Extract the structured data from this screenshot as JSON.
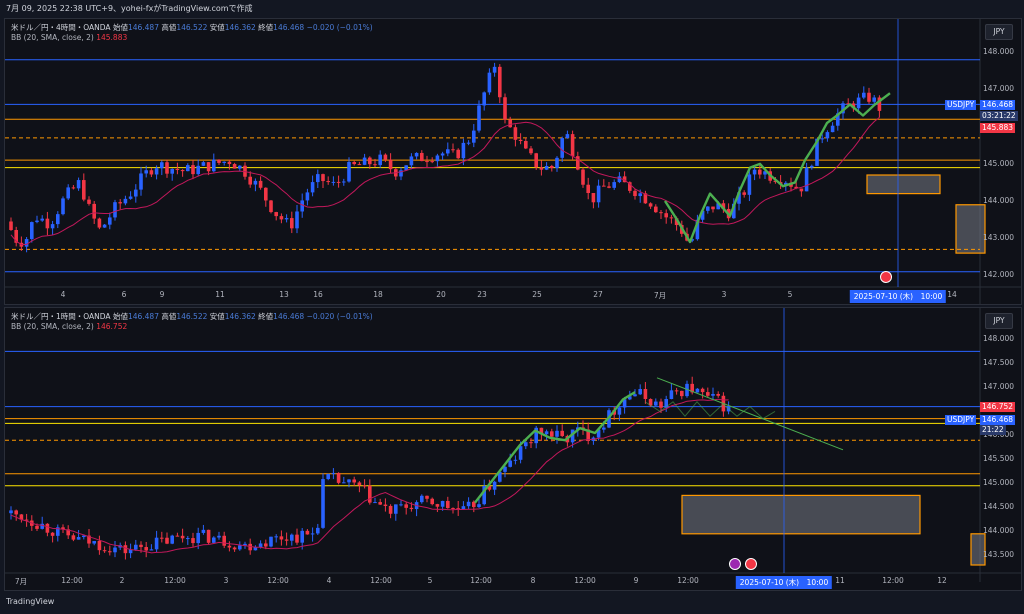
{
  "top_bar": {
    "text": "7月 09, 2025 22:38 UTC+9、yohei-fxがTradingView.comで作成"
  },
  "footer": {
    "brand": "TradingView"
  },
  "colors": {
    "bull": "#2962ff",
    "bear": "#f23645",
    "bb": "#c2185b",
    "hline_blue": "#2962ff",
    "hline_orange": "#ff9800",
    "hline_yellow": "#ffe500",
    "wave": "#4caf50",
    "cursor": "#2962ff"
  },
  "pane1": {
    "symbol": "米ドル／円・4時間・OANDA",
    "open_label": "始値",
    "open": "146.487",
    "high_label": "高値",
    "high": "146.522",
    "low_label": "安値",
    "low": "146.362",
    "close_label": "終値",
    "close": "146.468",
    "change": "−0.020 (−0.01%)",
    "indicator": "BB (20, SMA, close, 2)",
    "indicator_value": "145.883",
    "currency": "JPY",
    "price_labels": [
      "148.000",
      "147.000",
      "145.000",
      "144.000",
      "143.000",
      "142.000"
    ],
    "last_symbol": "USDJPY",
    "last_price": "146.468",
    "countdown": "03:21:22",
    "bb_tag": "145.883",
    "x_labels": [
      "4",
      "6",
      "9",
      "11",
      "13",
      "16",
      "18",
      "20",
      "23",
      "25",
      "27",
      "7月",
      "3",
      "5",
      "14"
    ],
    "x_selected": "2025-07-10 (木)　10:00"
  },
  "pane2": {
    "symbol": "米ドル／円・1時間・OANDA",
    "open_label": "始値",
    "open": "146.487",
    "high_label": "高値",
    "high": "146.522",
    "low_label": "安値",
    "low": "146.362",
    "close_label": "終値",
    "close": "146.468",
    "change": "−0.020 (−0.01%)",
    "indicator": "BB (20, SMA, close, 2)",
    "indicator_value": "146.752",
    "currency": "JPY",
    "price_labels": [
      "148.000",
      "147.500",
      "147.000",
      "146.000",
      "145.500",
      "145.000",
      "144.500",
      "144.000",
      "143.500"
    ],
    "last_symbol": "USDJPY",
    "last_price": "146.468",
    "countdown": "21:22",
    "bb_tag": "146.752",
    "x_labels": [
      "7月",
      "12:00",
      "2",
      "12:00",
      "3",
      "12:00",
      "4",
      "12:00",
      "5",
      "12:00",
      "8",
      "12:00",
      "9",
      "12:00",
      "11",
      "12:00",
      "12"
    ],
    "x_selected": "2025-07-10 (木)　10:00"
  },
  "chart_data": [
    {
      "type": "candlestick",
      "title": "米ドル／円・4時間・OANDA",
      "ylim": [
        141.85,
        148.25
      ],
      "path": [
        [
          0,
          143.9
        ],
        [
          8,
          143.0
        ],
        [
          20,
          142.9
        ],
        [
          30,
          143.6
        ],
        [
          45,
          143.4
        ],
        [
          60,
          144.1
        ],
        [
          75,
          144.5
        ],
        [
          85,
          143.7
        ],
        [
          95,
          143.2
        ],
        [
          110,
          143.8
        ],
        [
          125,
          144.2
        ],
        [
          140,
          144.7
        ],
        [
          150,
          145.0
        ],
        [
          165,
          144.9
        ],
        [
          180,
          144.8
        ],
        [
          195,
          144.9
        ],
        [
          210,
          145.0
        ],
        [
          225,
          145.1
        ],
        [
          240,
          144.8
        ],
        [
          255,
          144.3
        ],
        [
          270,
          143.7
        ],
        [
          285,
          143.3
        ],
        [
          300,
          144.2
        ],
        [
          315,
          144.6
        ],
        [
          330,
          144.4
        ],
        [
          345,
          144.9
        ],
        [
          360,
          145.0
        ],
        [
          375,
          145.1
        ],
        [
          390,
          144.8
        ],
        [
          405,
          145.1
        ],
        [
          420,
          145.2
        ],
        [
          435,
          145.3
        ],
        [
          450,
          145.2
        ],
        [
          465,
          145.7
        ],
        [
          478,
          146.8
        ],
        [
          490,
          147.7
        ],
        [
          500,
          146.1
        ],
        [
          510,
          145.8
        ],
        [
          520,
          145.3
        ],
        [
          535,
          144.9
        ],
        [
          548,
          144.9
        ],
        [
          560,
          145.9
        ],
        [
          572,
          145.1
        ],
        [
          585,
          144.0
        ],
        [
          600,
          144.4
        ],
        [
          615,
          144.5
        ],
        [
          630,
          144.3
        ],
        [
          645,
          144.0
        ],
        [
          660,
          143.6
        ],
        [
          675,
          143.3
        ],
        [
          685,
          142.8
        ],
        [
          695,
          143.6
        ],
        [
          710,
          143.9
        ],
        [
          725,
          143.7
        ],
        [
          740,
          144.3
        ],
        [
          750,
          144.9
        ],
        [
          765,
          144.7
        ],
        [
          780,
          144.6
        ],
        [
          795,
          144.3
        ],
        [
          805,
          145.0
        ],
        [
          815,
          145.7
        ],
        [
          825,
          146.1
        ],
        [
          835,
          146.4
        ],
        [
          845,
          146.6
        ],
        [
          855,
          146.7
        ],
        [
          865,
          146.8
        ],
        [
          875,
          146.5
        ]
      ],
      "hlines": [
        {
          "price": 147.8,
          "color": "hline_blue"
        },
        {
          "price": 146.6,
          "color": "hline_blue"
        },
        {
          "price": 146.2,
          "color": "hline_orange"
        },
        {
          "price": 145.7,
          "color": "hline_orange",
          "dashed": true
        },
        {
          "price": 145.1,
          "color": "hline_orange"
        },
        {
          "price": 144.9,
          "color": "hline_yellow"
        },
        {
          "price": 142.7,
          "color": "hline_orange",
          "dashed": true
        },
        {
          "price": 142.1,
          "color": "hline_blue"
        }
      ],
      "zones": [
        {
          "x0": 862,
          "x1": 935,
          "p0": 144.7,
          "p1": 144.2
        },
        {
          "x0": 951,
          "x1": 980,
          "p0": 143.9,
          "p1": 142.6
        }
      ],
      "wave": [
        [
          660,
          144.0
        ],
        [
          672,
          143.5
        ],
        [
          685,
          142.9
        ],
        [
          695,
          143.6
        ],
        [
          705,
          144.2
        ],
        [
          715,
          143.9
        ],
        [
          725,
          143.6
        ],
        [
          735,
          144.3
        ],
        [
          745,
          144.9
        ],
        [
          755,
          145.0
        ],
        [
          765,
          144.7
        ],
        [
          778,
          144.4
        ],
        [
          790,
          144.5
        ],
        [
          800,
          145.1
        ],
        [
          812,
          145.6
        ],
        [
          822,
          146.1
        ],
        [
          832,
          146.3
        ],
        [
          845,
          146.6
        ],
        [
          858,
          146.3
        ],
        [
          870,
          146.6
        ],
        [
          885,
          146.9
        ]
      ],
      "cursor_x": 893
    },
    {
      "type": "candlestick",
      "title": "米ドル／円・1時間・OANDA",
      "ylim": [
        143.3,
        148.3
      ],
      "path": [
        [
          0,
          144.4
        ],
        [
          20,
          144.3
        ],
        [
          40,
          144.1
        ],
        [
          60,
          143.9
        ],
        [
          80,
          143.8
        ],
        [
          100,
          143.7
        ],
        [
          120,
          143.6
        ],
        [
          140,
          143.7
        ],
        [
          160,
          143.8
        ],
        [
          180,
          143.9
        ],
        [
          200,
          143.9
        ],
        [
          220,
          143.8
        ],
        [
          240,
          143.7
        ],
        [
          260,
          143.8
        ],
        [
          280,
          143.9
        ],
        [
          300,
          143.9
        ],
        [
          312,
          144.0
        ],
        [
          316,
          145.0
        ],
        [
          325,
          145.1
        ],
        [
          340,
          145.0
        ],
        [
          355,
          144.9
        ],
        [
          370,
          144.6
        ],
        [
          385,
          144.4
        ],
        [
          400,
          144.5
        ],
        [
          415,
          144.6
        ],
        [
          430,
          144.6
        ],
        [
          445,
          144.5
        ],
        [
          460,
          144.4
        ],
        [
          475,
          144.7
        ],
        [
          490,
          145.1
        ],
        [
          505,
          145.4
        ],
        [
          520,
          145.8
        ],
        [
          535,
          146.1
        ],
        [
          550,
          146.0
        ],
        [
          560,
          145.9
        ],
        [
          570,
          146.1
        ],
        [
          585,
          146.0
        ],
        [
          600,
          146.3
        ],
        [
          615,
          146.7
        ],
        [
          628,
          146.9
        ],
        [
          640,
          146.8
        ],
        [
          655,
          146.6
        ],
        [
          670,
          146.9
        ],
        [
          685,
          147.0
        ],
        [
          700,
          146.8
        ],
        [
          715,
          146.7
        ],
        [
          725,
          146.5
        ]
      ],
      "hlines": [
        {
          "price": 147.75,
          "color": "hline_blue"
        },
        {
          "price": 146.6,
          "color": "hline_blue"
        },
        {
          "price": 146.35,
          "color": "hline_orange"
        },
        {
          "price": 146.25,
          "color": "hline_yellow"
        },
        {
          "price": 145.9,
          "color": "hline_orange",
          "dashed": true
        },
        {
          "price": 145.2,
          "color": "hline_orange"
        },
        {
          "price": 144.95,
          "color": "hline_yellow"
        }
      ],
      "zones": [
        {
          "x0": 677,
          "x1": 915,
          "p0": 144.75,
          "p1": 143.95
        },
        {
          "x0": 966,
          "x1": 980,
          "p0": 143.95,
          "p1": 143.3
        }
      ],
      "wave": [
        [
          470,
          144.6
        ],
        [
          485,
          145.0
        ],
        [
          500,
          145.4
        ],
        [
          515,
          145.8
        ],
        [
          530,
          146.1
        ],
        [
          545,
          145.95
        ],
        [
          560,
          145.9
        ],
        [
          575,
          146.15
        ],
        [
          590,
          146.05
        ],
        [
          605,
          146.4
        ],
        [
          618,
          146.75
        ],
        [
          630,
          146.9
        ]
      ],
      "wave_dim": [
        [
          640,
          146.7
        ],
        [
          655,
          146.5
        ],
        [
          668,
          146.7
        ],
        [
          680,
          146.4
        ],
        [
          692,
          146.7
        ],
        [
          705,
          146.4
        ],
        [
          718,
          146.65
        ],
        [
          732,
          146.4
        ],
        [
          745,
          146.6
        ],
        [
          758,
          146.35
        ],
        [
          770,
          146.5
        ]
      ],
      "trendline": [
        [
          652,
          147.2
        ],
        [
          838,
          145.7
        ]
      ],
      "cursor_x": 779
    }
  ]
}
